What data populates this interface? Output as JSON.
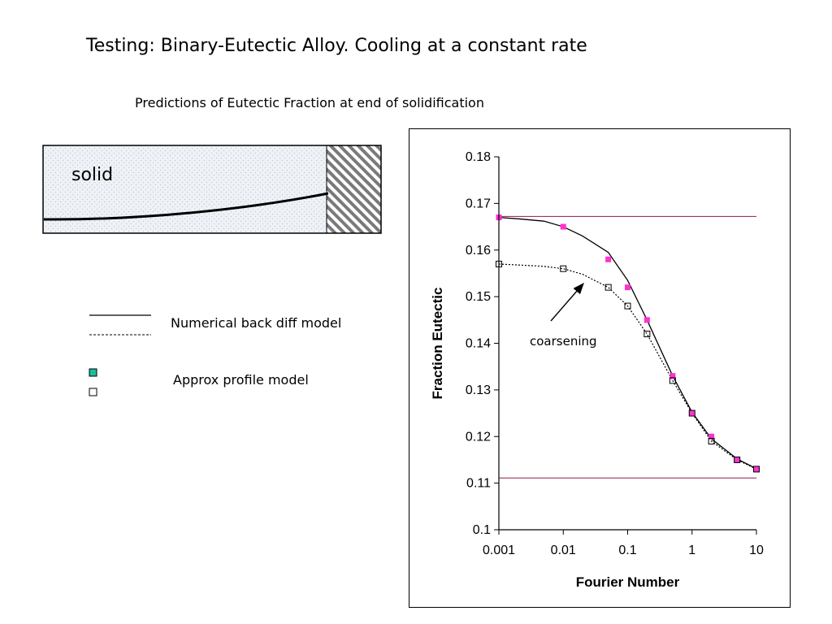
{
  "slide": {
    "title": "Testing: Binary-Eutectic Alloy. Cooling at a constant rate",
    "subtitle": "Predictions of Eutectic Fraction at end of solidification"
  },
  "schematic": {
    "label": "solid",
    "solid_fill": "#e8eef4",
    "hatch_color": "#7a7a7a"
  },
  "legend": {
    "lines_label": "Numerical back diff model",
    "markers_label": "Approx profile model",
    "filled_marker_color": "#1abc9c",
    "open_marker_color": "#ffffff"
  },
  "chart_data": {
    "type": "scatter",
    "xscale": "log",
    "xlabel": "Fourier Number",
    "ylabel": "Fraction Eutectic",
    "xlim": [
      0.001,
      10
    ],
    "ylim": [
      0.1,
      0.18
    ],
    "xticks": [
      "0.001",
      "0.01",
      "0.1",
      "1",
      "10"
    ],
    "yticks": [
      "0.1",
      "0.11",
      "0.12",
      "0.13",
      "0.14",
      "0.15",
      "0.16",
      "0.17",
      "0.18"
    ],
    "grid": false,
    "annotation": "coarsening",
    "reference_lines": [
      {
        "y": 0.1672,
        "color": "#993366"
      },
      {
        "y": 0.1111,
        "color": "#993366"
      }
    ],
    "series": [
      {
        "style": "solid-line",
        "color": "#000000",
        "x": [
          0.001,
          0.002,
          0.005,
          0.01,
          0.02,
          0.05,
          0.1,
          0.2,
          0.5,
          1,
          2,
          5,
          10
        ],
        "y": [
          0.167,
          0.1667,
          0.1662,
          0.165,
          0.163,
          0.1595,
          0.1535,
          0.145,
          0.133,
          0.1252,
          0.1195,
          0.1152,
          0.1131
        ]
      },
      {
        "style": "dotted-line",
        "color": "#000000",
        "x": [
          0.001,
          0.002,
          0.005,
          0.01,
          0.02,
          0.05,
          0.1,
          0.2,
          0.5,
          1,
          2,
          5,
          10
        ],
        "y": [
          0.157,
          0.1568,
          0.1565,
          0.156,
          0.1548,
          0.152,
          0.148,
          0.142,
          0.132,
          0.125,
          0.119,
          0.115,
          0.113
        ]
      },
      {
        "style": "filled-markers",
        "color": "#ff33cc",
        "x": [
          0.001,
          0.01,
          0.05,
          0.1,
          0.2,
          0.5,
          1,
          2,
          5,
          10
        ],
        "y": [
          0.167,
          0.165,
          0.158,
          0.152,
          0.145,
          0.133,
          0.125,
          0.12,
          0.115,
          0.113
        ]
      },
      {
        "style": "open-markers",
        "color": "#000000",
        "x": [
          0.001,
          0.01,
          0.05,
          0.1,
          0.2,
          0.5,
          1,
          2,
          5,
          10
        ],
        "y": [
          0.157,
          0.156,
          0.152,
          0.148,
          0.142,
          0.132,
          0.125,
          0.119,
          0.115,
          0.113
        ]
      }
    ]
  }
}
